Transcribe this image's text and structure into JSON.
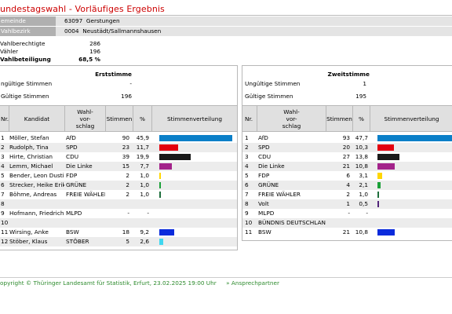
{
  "page": {
    "title": "undestagswahl - Vorläufiges Ergebnis",
    "location": [
      {
        "key": "emeinde",
        "value": "63097  Gerstungen"
      },
      {
        "key": "Vahlbezirk",
        "value": "0004  Neustädt/Sallmannshausen"
      }
    ],
    "stats": [
      {
        "key": "Vahlberechtigte",
        "value": "286",
        "bold": false
      },
      {
        "key": "Vähler",
        "value": "196",
        "bold": false
      },
      {
        "key": "Vahlbeteiligung",
        "value": "68,5 %",
        "bold": true
      }
    ]
  },
  "erststimme": {
    "title": "Erststimme",
    "invalid_label": "ngültige Stimmen",
    "invalid_value": "-",
    "valid_label": "Gültige Stimmen",
    "valid_value": "196",
    "headers": {
      "nr": "Nr.",
      "name": "Kandidat",
      "party": "Wahl-\nvor-\nschlag",
      "votes": "Stimmen",
      "pct": "%",
      "dist": "Stimmenverteilung"
    },
    "rows": [
      {
        "nr": "1",
        "name": "Möller, Stefan",
        "party": "AfD",
        "votes": "90",
        "pct": "45,9",
        "share": 45.9,
        "color": "#0a7fc8"
      },
      {
        "nr": "2",
        "name": "Rudolph, Tina",
        "party": "SPD",
        "votes": "23",
        "pct": "11,7",
        "share": 11.7,
        "color": "#e3000f"
      },
      {
        "nr": "3",
        "name": "Hirte, Christian",
        "party": "CDU",
        "votes": "39",
        "pct": "19,9",
        "share": 19.9,
        "color": "#1a1a1a"
      },
      {
        "nr": "4",
        "name": "Lemm, Michael",
        "party": "Die Linke",
        "votes": "15",
        "pct": "7,7",
        "share": 7.7,
        "color": "#a3228a"
      },
      {
        "nr": "5",
        "name": "Bender, Leon Dustin",
        "party": "FDP",
        "votes": "2",
        "pct": "1,0",
        "share": 1.0,
        "color": "#ffd600"
      },
      {
        "nr": "6",
        "name": "Strecker, Heike Erika",
        "party": "GRÜNE",
        "votes": "2",
        "pct": "1,0",
        "share": 1.0,
        "color": "#1aa037"
      },
      {
        "nr": "7",
        "name": "Böhme, Andreas",
        "party": "FREIE WÄHLER",
        "votes": "2",
        "pct": "1,0",
        "share": 1.0,
        "color": "#1e6e3c"
      },
      {
        "nr": "8",
        "name": "",
        "party": "",
        "votes": "",
        "pct": "",
        "share": 0,
        "color": ""
      },
      {
        "nr": "9",
        "name": "Hofmann, Friedrich",
        "party": "MLPD",
        "votes": "-",
        "pct": "-",
        "share": 0,
        "color": ""
      },
      {
        "nr": "10",
        "name": "",
        "party": "",
        "votes": "",
        "pct": "",
        "share": 0,
        "color": ""
      },
      {
        "nr": "11",
        "name": "Wirsing, Anke",
        "party": "BSW",
        "votes": "18",
        "pct": "9,2",
        "share": 9.2,
        "color": "#0a2bdc"
      },
      {
        "nr": "12",
        "name": "Stöber, Klaus",
        "party": "STÖBER",
        "votes": "5",
        "pct": "2,6",
        "share": 2.6,
        "color": "#3fd7f0"
      }
    ]
  },
  "zweitstimme": {
    "title": "Zweitstimme",
    "invalid_label": "Ungültige Stimmen",
    "invalid_value": "1",
    "valid_label": "Gültige Stimmen",
    "valid_value": "195",
    "headers": {
      "nr": "Nr.",
      "party": "Wahl-\nvor-\nschlag",
      "votes": "Stimmen",
      "pct": "%",
      "dist": "Stimmenverteilung"
    },
    "rows": [
      {
        "nr": "1",
        "party": "AfD",
        "votes": "93",
        "pct": "47,7",
        "share": 47.7,
        "color": "#0a7fc8"
      },
      {
        "nr": "2",
        "party": "SPD",
        "votes": "20",
        "pct": "10,3",
        "share": 10.3,
        "color": "#e3000f"
      },
      {
        "nr": "3",
        "party": "CDU",
        "votes": "27",
        "pct": "13,8",
        "share": 13.8,
        "color": "#1a1a1a"
      },
      {
        "nr": "4",
        "party": "Die Linke",
        "votes": "21",
        "pct": "10,8",
        "share": 10.8,
        "color": "#a3228a"
      },
      {
        "nr": "5",
        "party": "FDP",
        "votes": "6",
        "pct": "3,1",
        "share": 3.1,
        "color": "#ffd600"
      },
      {
        "nr": "6",
        "party": "GRÜNE",
        "votes": "4",
        "pct": "2,1",
        "share": 2.1,
        "color": "#1aa037"
      },
      {
        "nr": "7",
        "party": "FREIE WÄHLER",
        "votes": "2",
        "pct": "1,0",
        "share": 1.0,
        "color": "#1e6e3c"
      },
      {
        "nr": "8",
        "party": "Volt",
        "votes": "1",
        "pct": "0,5",
        "share": 0.5,
        "color": "#502379"
      },
      {
        "nr": "9",
        "party": "MLPD",
        "votes": "-",
        "pct": "-",
        "share": 0,
        "color": ""
      },
      {
        "nr": "10",
        "party": "BÜNDNIS DEUTSCHLAND",
        "votes": "",
        "pct": "",
        "share": 0,
        "color": ""
      },
      {
        "nr": "11",
        "party": "BSW",
        "votes": "21",
        "pct": "10,8",
        "share": 10.8,
        "color": "#0a2bdc"
      }
    ]
  },
  "footer": {
    "copyright": "opyright © Thüringer Landesamt für Statistik, Erfurt, 23.02.2025 19:00 Uhr",
    "link": "» Ansprechpartner"
  }
}
